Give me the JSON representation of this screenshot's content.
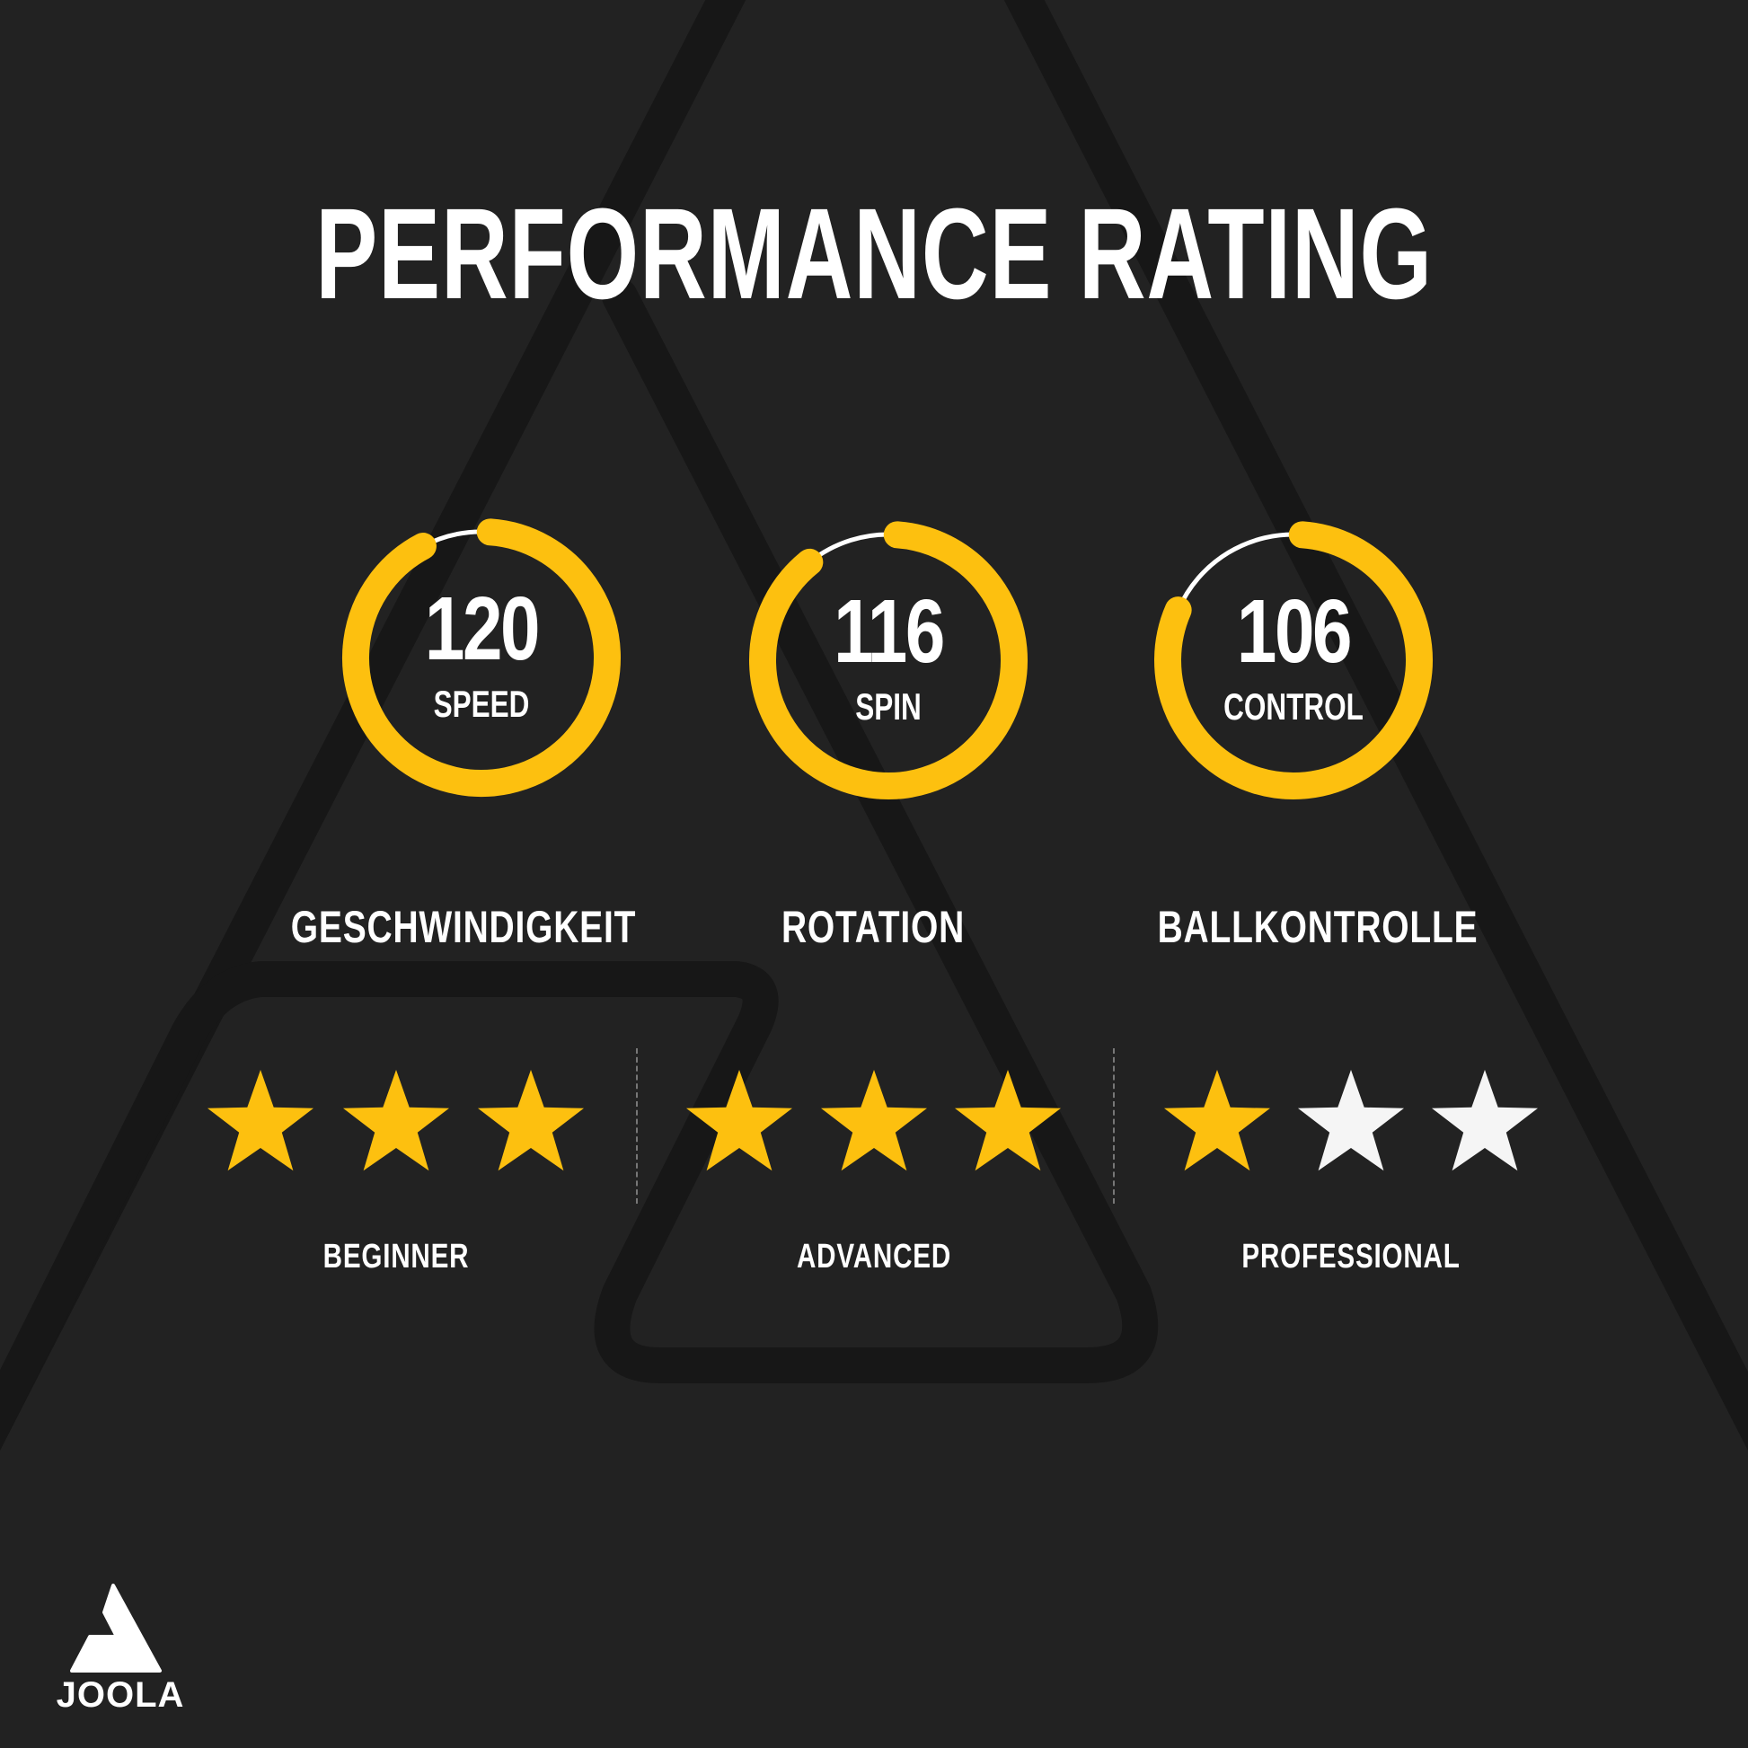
{
  "title": "PERFORMANCE RATING",
  "colors": {
    "background": "#222222",
    "accent": "#FDC00F",
    "empty_star": "#F5F5F5",
    "text": "#FFFFFF"
  },
  "gauges": [
    {
      "value": "120",
      "label": "SPEED",
      "category": "GESCHWINDIGKEIT",
      "max": 130
    },
    {
      "value": "116",
      "label": "SPIN",
      "category": "ROTATION",
      "max": 130
    },
    {
      "value": "106",
      "label": "CONTROL",
      "category": "BALLKONTROLLE",
      "max": 130
    }
  ],
  "levels": [
    {
      "label": "BEGINNER",
      "stars_filled": 3,
      "stars_total": 3
    },
    {
      "label": "ADVANCED",
      "stars_filled": 3,
      "stars_total": 3
    },
    {
      "label": "PROFESSIONAL",
      "stars_filled": 1,
      "stars_total": 3
    }
  ],
  "logo": {
    "text": "JOOLA",
    "icon": "joola-triangle-logo"
  }
}
